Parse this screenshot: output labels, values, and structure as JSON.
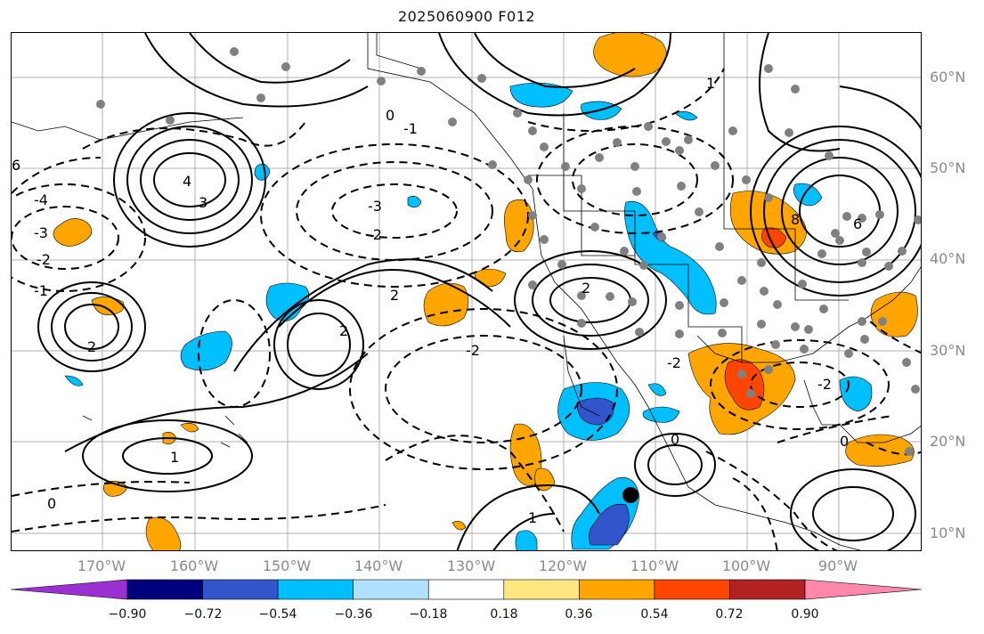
{
  "title": "2025060900 F012",
  "lat_labels": [
    "60°N",
    "50°N",
    "40°N",
    "30°N",
    "20°N",
    "10°N"
  ],
  "lon_labels": [
    "170°W",
    "160°W",
    "150°W",
    "140°W",
    "130°W",
    "120°W",
    "110°W",
    "100°W",
    "90°W"
  ],
  "colorbar": {
    "ticks": [
      "−0.90",
      "−0.72",
      "−0.54",
      "−0.36",
      "−0.18",
      "0.18",
      "0.36",
      "0.54",
      "0.72",
      "0.90"
    ],
    "colors": [
      "#9b30d0",
      "#00007f",
      "#3355cc",
      "#00bfff",
      "#b0e2ff",
      "#ffffff",
      "#ffe680",
      "#ffa500",
      "#ff4500",
      "#b22222",
      "#ff88aa"
    ]
  },
  "contour_labels": [
    "0",
    "-1",
    "-2",
    "-3",
    "-4",
    "1",
    "2",
    "3",
    "4",
    "6",
    "8"
  ]
}
